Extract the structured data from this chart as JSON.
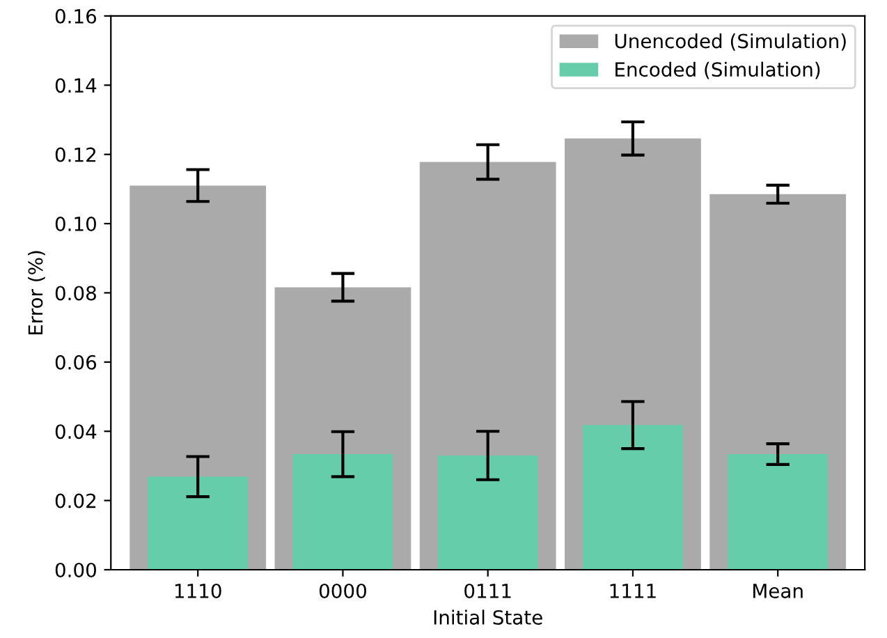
{
  "chart_data": {
    "type": "bar",
    "xlabel": "Initial State",
    "ylabel": "Error (%)",
    "categories": [
      "1110",
      "0000",
      "0111",
      "1111",
      "Mean"
    ],
    "series": [
      {
        "name": "Unencoded (Simulation)",
        "color": "#aaaaaa",
        "values": [
          0.111,
          0.0816,
          0.1178,
          0.1246,
          0.1085
        ],
        "errors": [
          0.0046,
          0.004,
          0.005,
          0.0048,
          0.0026
        ]
      },
      {
        "name": "Encoded (Simulation)",
        "color": "#66cdaa",
        "values": [
          0.0269,
          0.0334,
          0.033,
          0.0418,
          0.0334
        ],
        "errors": [
          0.0058,
          0.0065,
          0.007,
          0.0068,
          0.003
        ]
      }
    ],
    "ylim": [
      0,
      0.16
    ],
    "yticks": [
      {
        "value": 0,
        "label": "0.00"
      },
      {
        "value": 0.02,
        "label": "0.02"
      },
      {
        "value": 0.04,
        "label": "0.04"
      },
      {
        "value": 0.06,
        "label": "0.06"
      },
      {
        "value": 0.08,
        "label": "0.08"
      },
      {
        "value": 0.1,
        "label": "0.10"
      },
      {
        "value": 0.12,
        "label": "0.12"
      },
      {
        "value": 0.14,
        "label": "0.14"
      },
      {
        "value": 0.16,
        "label": "0.16"
      }
    ],
    "legend": "top right"
  }
}
